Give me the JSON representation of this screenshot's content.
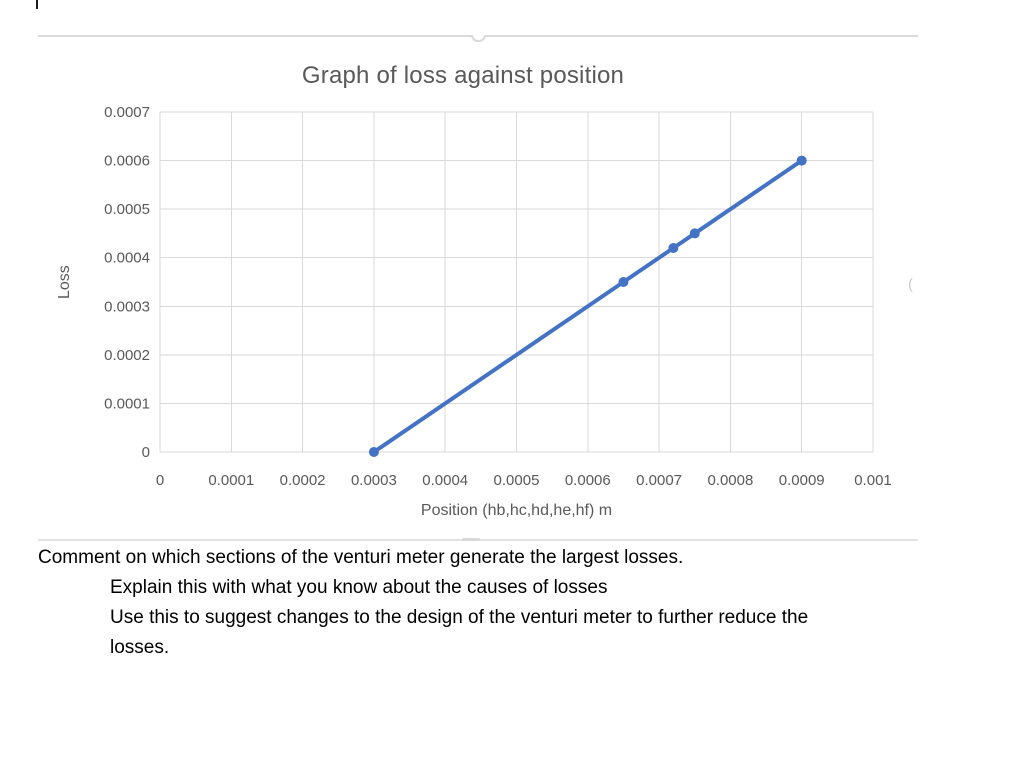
{
  "chart_data": {
    "type": "line",
    "title": "Graph of loss against position",
    "xlabel": "Position (hb,hc,hd,he,hf) m",
    "ylabel": "Loss",
    "xlim": [
      0,
      0.001
    ],
    "ylim": [
      0,
      0.0007
    ],
    "grid": true,
    "legend": false,
    "x_ticks": {
      "values": [
        0,
        0.0001,
        0.0002,
        0.0003,
        0.0004,
        0.0005,
        0.0006,
        0.0007,
        0.0008,
        0.0009,
        0.001
      ],
      "labels": [
        "0",
        "0.0001",
        "0.0002",
        "0.0003",
        "0.0004",
        "0.0005",
        "0.0006",
        "0.0007",
        "0.0008",
        "0.0009",
        "0.001"
      ]
    },
    "y_ticks": {
      "values": [
        0,
        0.0001,
        0.0002,
        0.0003,
        0.0004,
        0.0005,
        0.0006,
        0.0007
      ],
      "labels": [
        "0",
        "0.0001",
        "0.0002",
        "0.0003",
        "0.0004",
        "0.0005",
        "0.0006",
        "0.0007"
      ]
    },
    "series": [
      {
        "name": "Loss",
        "points": [
          {
            "x": 0.0003,
            "y": 0
          },
          {
            "x": 0.00065,
            "y": 0.00035
          },
          {
            "x": 0.00072,
            "y": 0.00042
          },
          {
            "x": 0.00075,
            "y": 0.00045
          },
          {
            "x": 0.0009,
            "y": 0.0006
          }
        ]
      }
    ],
    "colors": {
      "line": "#4472C4",
      "grid": "#d9d9d9",
      "axis_text": "#595959"
    }
  },
  "chart_ui": {
    "right_handle_glyph": "("
  },
  "body": {
    "lines": [
      {
        "text": "Comment on which sections of the venturi meter generate the largest losses."
      },
      {
        "text": "Explain this with what you know about the causes of losses"
      },
      {
        "text": "Use this to suggest changes to the design of the venturi meter to further reduce the"
      },
      {
        "text": "losses."
      }
    ]
  }
}
